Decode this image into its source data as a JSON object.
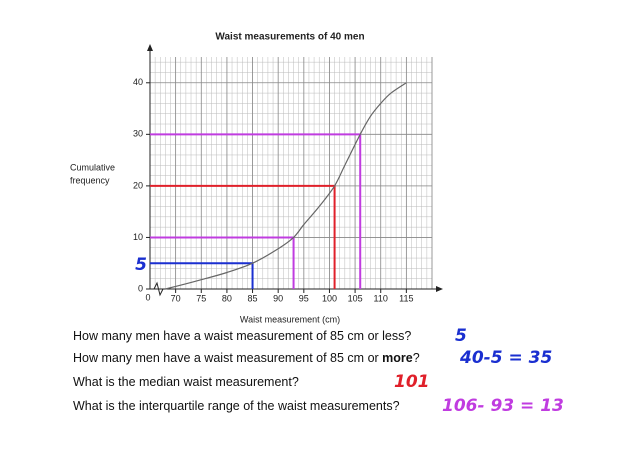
{
  "chart_data": {
    "type": "line",
    "title": "Waist measurements of 40 men",
    "xlabel": "Waist measurement (cm)",
    "ylabel": [
      "Cumulative",
      "frequency"
    ],
    "x_origin_label": "0",
    "x": [
      68,
      72,
      75,
      80,
      85,
      90,
      93,
      95,
      98,
      101,
      103,
      106,
      108,
      110,
      112,
      115
    ],
    "series": [
      {
        "name": "Cumulative frequency",
        "color": "#666666",
        "values": [
          0,
          1,
          1.8,
          3.2,
          5,
          7.8,
          10,
          12.5,
          16,
          20,
          24,
          30,
          33.5,
          36,
          38,
          40
        ]
      }
    ],
    "xlim": [
      65,
      120
    ],
    "ylim": [
      0,
      45
    ],
    "xticks": [
      70,
      75,
      80,
      85,
      90,
      95,
      100,
      105,
      110,
      115
    ],
    "yticks": [
      0,
      10,
      20,
      30,
      40
    ],
    "grid": true,
    "readings": [
      {
        "y": 5,
        "x": 85,
        "color": "#1a2fd0",
        "label": "5"
      },
      {
        "y": 10,
        "x": 93,
        "color": "#c03ce0"
      },
      {
        "y": 20,
        "x": 101,
        "color": "#e0202a"
      },
      {
        "y": 30,
        "x": 106,
        "color": "#c03ce0"
      }
    ]
  },
  "questions": [
    {
      "parts": [
        "How many men have a waist measurement of 85 cm or less?"
      ],
      "answer": "5",
      "answer_color": "#1a2fd0"
    },
    {
      "parts": [
        "How many men have a waist measurement of 85 cm or ",
        "more",
        "?"
      ],
      "answer": "40-5 = 35",
      "answer_color": "#1a2fd0"
    },
    {
      "parts": [
        "What is the median waist measurement?"
      ],
      "answer": "101",
      "answer_color": "#e0202a"
    },
    {
      "parts": [
        "What is the interquartile range of the waist measurements?"
      ],
      "answer": "106- 93 = 13",
      "answer_color": "#c03ce0"
    }
  ]
}
